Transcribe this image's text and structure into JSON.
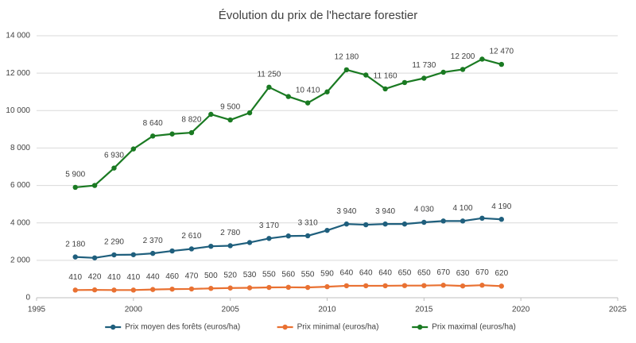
{
  "chart_data": {
    "type": "line",
    "title": "Évolution du prix de l'hectare forestier",
    "x": [
      1997,
      1998,
      1999,
      2000,
      2001,
      2002,
      2003,
      2004,
      2005,
      2006,
      2007,
      2008,
      2009,
      2010,
      2011,
      2012,
      2013,
      2014,
      2015,
      2016,
      2017,
      2018,
      2019
    ],
    "xlim": [
      1995,
      2025
    ],
    "xticks": [
      1995,
      2000,
      2005,
      2010,
      2015,
      2020,
      2025
    ],
    "ylim": [
      0,
      14000
    ],
    "yticks": [
      0,
      {
        "value": 2000,
        "label": "2 000"
      },
      {
        "value": 4000,
        "label": "4 000"
      },
      {
        "value": 6000,
        "label": "6 000"
      },
      {
        "value": 8000,
        "label": "8 000"
      },
      {
        "value": 10000,
        "label": "10 000"
      },
      {
        "value": 12000,
        "label": "12 000"
      },
      {
        "value": 14000,
        "label": "14 000"
      }
    ],
    "grid": true,
    "legend": "bottom",
    "series": [
      {
        "name": "Prix moyen des forêts (euros/ha)",
        "color": "#1f5f7d",
        "values": [
          2180,
          2130,
          2290,
          2300,
          2370,
          2500,
          2610,
          2750,
          2780,
          2950,
          3170,
          3300,
          3310,
          3600,
          3940,
          3900,
          3940,
          3940,
          4030,
          4100,
          4100,
          4250,
          4190
        ],
        "value_labels": [
          "2 180",
          null,
          "2 290",
          null,
          "2 370",
          null,
          "2 610",
          null,
          "2 780",
          null,
          "3 170",
          null,
          "3 310",
          null,
          "3 940",
          null,
          "3 940",
          null,
          "4 030",
          null,
          "4 100",
          null,
          "4 190"
        ]
      },
      {
        "name": "Prix minimal (euros/ha)",
        "color": "#e97132",
        "values": [
          410,
          420,
          410,
          410,
          440,
          460,
          470,
          500,
          520,
          530,
          550,
          560,
          550,
          590,
          640,
          640,
          640,
          650,
          650,
          670,
          630,
          670,
          620
        ]
      },
      {
        "name": "Prix maximal (euros/ha)",
        "color": "#1a7a22",
        "values": [
          5900,
          6000,
          6930,
          7950,
          8640,
          8750,
          8820,
          9800,
          9500,
          9880,
          11250,
          10750,
          10410,
          11000,
          12180,
          11900,
          11160,
          11500,
          11730,
          12050,
          12200,
          12750,
          12470
        ],
        "value_labels": [
          "5 900",
          null,
          "6 930",
          null,
          "8 640",
          null,
          "8 820",
          null,
          "9 500",
          null,
          "11 250",
          null,
          "10 410",
          null,
          "12 180",
          null,
          "11 160",
          null,
          "11 730",
          null,
          "12 200",
          null,
          "12 470"
        ]
      }
    ]
  }
}
